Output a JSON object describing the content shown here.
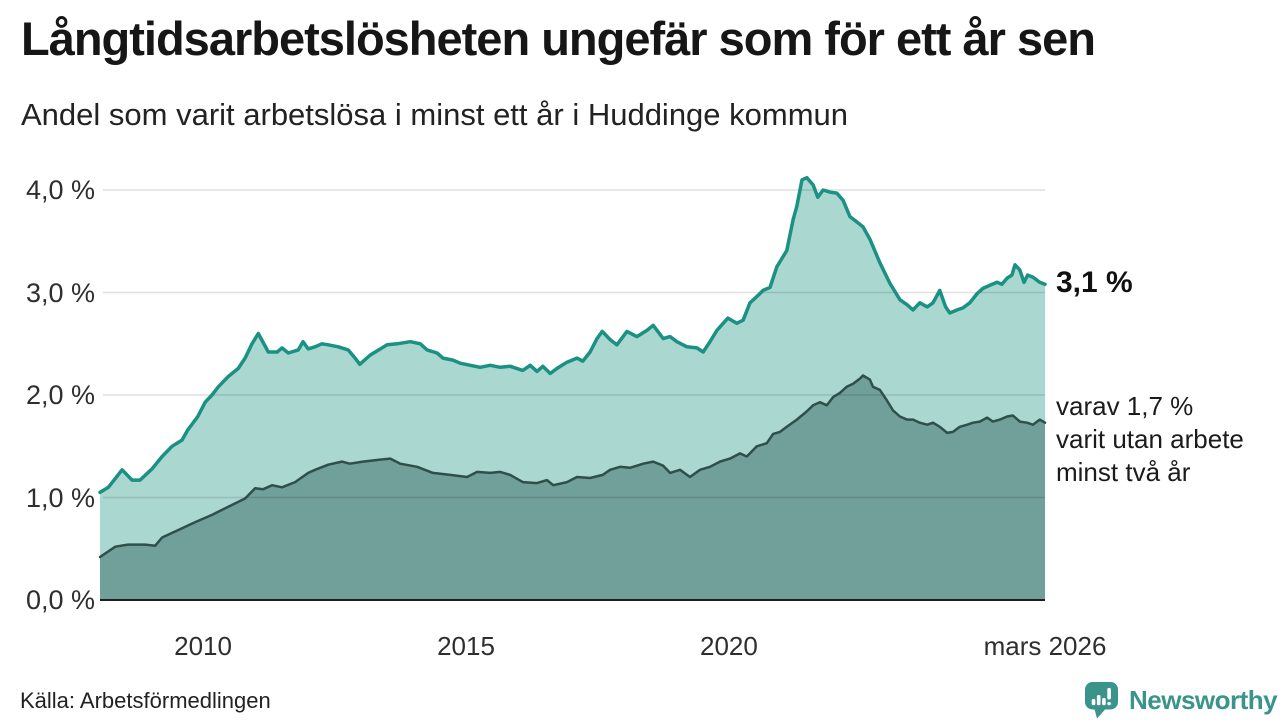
{
  "header": {
    "title": "Långtidsarbetslösheten ungefär som för ett år sen",
    "subtitle": "Andel som varit arbetslösa i minst ett år i Huddinge kommun"
  },
  "chart_data": {
    "type": "area",
    "title": "Långtidsarbetslösheten ungefär som för ett år sen",
    "subtitle": "Andel som varit arbetslösa i minst ett år i Huddinge kommun",
    "unit": "%",
    "grid": true,
    "legend_position": "end-of-line-labels",
    "x_domain": [
      2008.04,
      2026.01
    ],
    "ylim": [
      0,
      4.3
    ],
    "y_ticks": [
      {
        "label": "0,0 %",
        "value": 0
      },
      {
        "label": "1,0 %",
        "value": 1
      },
      {
        "label": "2,0 %",
        "value": 2
      },
      {
        "label": "3,0 %",
        "value": 3
      },
      {
        "label": "4,0 %",
        "value": 4
      }
    ],
    "x_ticks": [
      {
        "label": "2010",
        "value": 2010
      },
      {
        "label": "2015",
        "value": 2015
      },
      {
        "label": "2020",
        "value": 2020
      },
      {
        "label": "mars 2026",
        "value": 2026.01
      }
    ],
    "series": [
      {
        "name": "Andel arbetslösa minst ett år",
        "latest_value": 3.1,
        "end_label": "3,1 %",
        "color": "#1a9183",
        "fill": "#abd7d1",
        "stroke_width": 3.5,
        "points": [
          [
            2008.04,
            1.05
          ],
          [
            2008.2,
            1.1
          ],
          [
            2008.46,
            1.27
          ],
          [
            2008.65,
            1.17
          ],
          [
            2008.8,
            1.17
          ],
          [
            2009.03,
            1.28
          ],
          [
            2009.22,
            1.4
          ],
          [
            2009.41,
            1.5
          ],
          [
            2009.6,
            1.56
          ],
          [
            2009.71,
            1.66
          ],
          [
            2009.9,
            1.79
          ],
          [
            2010.04,
            1.93
          ],
          [
            2010.17,
            2.0
          ],
          [
            2010.29,
            2.08
          ],
          [
            2010.48,
            2.18
          ],
          [
            2010.67,
            2.26
          ],
          [
            2010.8,
            2.36
          ],
          [
            2010.93,
            2.5
          ],
          [
            2011.05,
            2.6
          ],
          [
            2011.24,
            2.42
          ],
          [
            2011.41,
            2.42
          ],
          [
            2011.5,
            2.46
          ],
          [
            2011.62,
            2.41
          ],
          [
            2011.81,
            2.44
          ],
          [
            2011.9,
            2.52
          ],
          [
            2012.0,
            2.45
          ],
          [
            2012.13,
            2.47
          ],
          [
            2012.26,
            2.5
          ],
          [
            2012.38,
            2.49
          ],
          [
            2012.57,
            2.47
          ],
          [
            2012.76,
            2.44
          ],
          [
            2012.89,
            2.36
          ],
          [
            2012.98,
            2.3
          ],
          [
            2013.18,
            2.39
          ],
          [
            2013.5,
            2.49
          ],
          [
            2013.69,
            2.5
          ],
          [
            2013.94,
            2.52
          ],
          [
            2014.13,
            2.5
          ],
          [
            2014.26,
            2.44
          ],
          [
            2014.45,
            2.41
          ],
          [
            2014.56,
            2.36
          ],
          [
            2014.75,
            2.34
          ],
          [
            2014.89,
            2.31
          ],
          [
            2015.08,
            2.29
          ],
          [
            2015.27,
            2.27
          ],
          [
            2015.46,
            2.29
          ],
          [
            2015.65,
            2.27
          ],
          [
            2015.84,
            2.28
          ],
          [
            2016.08,
            2.24
          ],
          [
            2016.22,
            2.29
          ],
          [
            2016.35,
            2.23
          ],
          [
            2016.46,
            2.28
          ],
          [
            2016.6,
            2.21
          ],
          [
            2016.73,
            2.26
          ],
          [
            2016.92,
            2.32
          ],
          [
            2017.11,
            2.36
          ],
          [
            2017.22,
            2.33
          ],
          [
            2017.36,
            2.42
          ],
          [
            2017.49,
            2.55
          ],
          [
            2017.59,
            2.62
          ],
          [
            2017.74,
            2.54
          ],
          [
            2017.87,
            2.49
          ],
          [
            2018.06,
            2.62
          ],
          [
            2018.25,
            2.57
          ],
          [
            2018.44,
            2.63
          ],
          [
            2018.56,
            2.68
          ],
          [
            2018.75,
            2.55
          ],
          [
            2018.88,
            2.57
          ],
          [
            2019.01,
            2.52
          ],
          [
            2019.2,
            2.47
          ],
          [
            2019.39,
            2.46
          ],
          [
            2019.51,
            2.42
          ],
          [
            2019.64,
            2.52
          ],
          [
            2019.77,
            2.63
          ],
          [
            2019.89,
            2.7
          ],
          [
            2019.98,
            2.75
          ],
          [
            2020.15,
            2.7
          ],
          [
            2020.27,
            2.73
          ],
          [
            2020.4,
            2.9
          ],
          [
            2020.53,
            2.96
          ],
          [
            2020.65,
            3.02
          ],
          [
            2020.78,
            3.05
          ],
          [
            2020.91,
            3.25
          ],
          [
            2021.1,
            3.41
          ],
          [
            2021.22,
            3.71
          ],
          [
            2021.29,
            3.84
          ],
          [
            2021.39,
            4.1
          ],
          [
            2021.48,
            4.12
          ],
          [
            2021.6,
            4.05
          ],
          [
            2021.69,
            3.93
          ],
          [
            2021.79,
            4.0
          ],
          [
            2021.92,
            3.98
          ],
          [
            2022.05,
            3.97
          ],
          [
            2022.17,
            3.9
          ],
          [
            2022.3,
            3.74
          ],
          [
            2022.43,
            3.69
          ],
          [
            2022.55,
            3.64
          ],
          [
            2022.68,
            3.52
          ],
          [
            2022.87,
            3.29
          ],
          [
            2023.06,
            3.09
          ],
          [
            2023.25,
            2.93
          ],
          [
            2023.39,
            2.88
          ],
          [
            2023.5,
            2.83
          ],
          [
            2023.63,
            2.9
          ],
          [
            2023.77,
            2.86
          ],
          [
            2023.88,
            2.9
          ],
          [
            2024.01,
            3.02
          ],
          [
            2024.12,
            2.86
          ],
          [
            2024.2,
            2.8
          ],
          [
            2024.34,
            2.83
          ],
          [
            2024.45,
            2.85
          ],
          [
            2024.58,
            2.9
          ],
          [
            2024.72,
            2.99
          ],
          [
            2024.83,
            3.04
          ],
          [
            2024.96,
            3.07
          ],
          [
            2025.1,
            3.1
          ],
          [
            2025.19,
            3.08
          ],
          [
            2025.29,
            3.14
          ],
          [
            2025.38,
            3.17
          ],
          [
            2025.44,
            3.27
          ],
          [
            2025.53,
            3.22
          ],
          [
            2025.61,
            3.1
          ],
          [
            2025.68,
            3.17
          ],
          [
            2025.78,
            3.15
          ],
          [
            2025.91,
            3.1
          ],
          [
            2026.01,
            3.08
          ]
        ]
      },
      {
        "name": "Varav arbetslösa minst två år",
        "latest_value": 1.7,
        "end_label": "varav 1,7 %\nvarit utan arbete\nminst två år",
        "color": "#2f4f4b",
        "fill": "#719f99",
        "stroke_width": 2.5,
        "points": [
          [
            2008.04,
            0.42
          ],
          [
            2008.33,
            0.52
          ],
          [
            2008.57,
            0.54
          ],
          [
            2008.9,
            0.54
          ],
          [
            2009.09,
            0.53
          ],
          [
            2009.22,
            0.61
          ],
          [
            2009.52,
            0.68
          ],
          [
            2009.85,
            0.76
          ],
          [
            2010.17,
            0.83
          ],
          [
            2010.48,
            0.91
          ],
          [
            2010.8,
            0.99
          ],
          [
            2010.99,
            1.09
          ],
          [
            2011.14,
            1.08
          ],
          [
            2011.31,
            1.12
          ],
          [
            2011.5,
            1.1
          ],
          [
            2011.75,
            1.15
          ],
          [
            2012.0,
            1.24
          ],
          [
            2012.13,
            1.27
          ],
          [
            2012.38,
            1.32
          ],
          [
            2012.64,
            1.35
          ],
          [
            2012.79,
            1.33
          ],
          [
            2013.04,
            1.35
          ],
          [
            2013.37,
            1.37
          ],
          [
            2013.56,
            1.38
          ],
          [
            2013.75,
            1.33
          ],
          [
            2014.07,
            1.3
          ],
          [
            2014.37,
            1.24
          ],
          [
            2014.7,
            1.22
          ],
          [
            2015.02,
            1.2
          ],
          [
            2015.21,
            1.25
          ],
          [
            2015.46,
            1.24
          ],
          [
            2015.65,
            1.25
          ],
          [
            2015.84,
            1.22
          ],
          [
            2016.08,
            1.15
          ],
          [
            2016.35,
            1.14
          ],
          [
            2016.54,
            1.17
          ],
          [
            2016.66,
            1.12
          ],
          [
            2016.92,
            1.15
          ],
          [
            2017.11,
            1.2
          ],
          [
            2017.36,
            1.19
          ],
          [
            2017.6,
            1.22
          ],
          [
            2017.74,
            1.27
          ],
          [
            2017.93,
            1.3
          ],
          [
            2018.12,
            1.29
          ],
          [
            2018.37,
            1.33
          ],
          [
            2018.56,
            1.35
          ],
          [
            2018.75,
            1.31
          ],
          [
            2018.88,
            1.24
          ],
          [
            2019.07,
            1.27
          ],
          [
            2019.26,
            1.2
          ],
          [
            2019.45,
            1.27
          ],
          [
            2019.64,
            1.3
          ],
          [
            2019.83,
            1.35
          ],
          [
            2020.02,
            1.38
          ],
          [
            2020.21,
            1.43
          ],
          [
            2020.34,
            1.4
          ],
          [
            2020.53,
            1.5
          ],
          [
            2020.72,
            1.53
          ],
          [
            2020.84,
            1.62
          ],
          [
            2020.97,
            1.64
          ],
          [
            2021.1,
            1.69
          ],
          [
            2021.29,
            1.76
          ],
          [
            2021.48,
            1.84
          ],
          [
            2021.6,
            1.9
          ],
          [
            2021.73,
            1.93
          ],
          [
            2021.86,
            1.9
          ],
          [
            2021.98,
            1.98
          ],
          [
            2022.11,
            2.02
          ],
          [
            2022.24,
            2.08
          ],
          [
            2022.36,
            2.11
          ],
          [
            2022.49,
            2.16
          ],
          [
            2022.55,
            2.19
          ],
          [
            2022.68,
            2.15
          ],
          [
            2022.74,
            2.08
          ],
          [
            2022.87,
            2.05
          ],
          [
            2023.0,
            1.95
          ],
          [
            2023.12,
            1.85
          ],
          [
            2023.25,
            1.79
          ],
          [
            2023.39,
            1.76
          ],
          [
            2023.5,
            1.76
          ],
          [
            2023.63,
            1.73
          ],
          [
            2023.77,
            1.71
          ],
          [
            2023.88,
            1.73
          ],
          [
            2024.01,
            1.69
          ],
          [
            2024.15,
            1.63
          ],
          [
            2024.26,
            1.64
          ],
          [
            2024.39,
            1.69
          ],
          [
            2024.53,
            1.71
          ],
          [
            2024.64,
            1.73
          ],
          [
            2024.77,
            1.74
          ],
          [
            2024.91,
            1.78
          ],
          [
            2025.02,
            1.74
          ],
          [
            2025.15,
            1.76
          ],
          [
            2025.29,
            1.79
          ],
          [
            2025.4,
            1.8
          ],
          [
            2025.53,
            1.74
          ],
          [
            2025.67,
            1.73
          ],
          [
            2025.78,
            1.71
          ],
          [
            2025.91,
            1.76
          ],
          [
            2026.01,
            1.73
          ]
        ]
      }
    ]
  },
  "annotations": {
    "latest_value": "3,1 %",
    "secondary": "varav 1,7 %\nvarit utan arbete\nminst två år"
  },
  "footer": {
    "source": "Källa: Arbetsförmedlingen",
    "brand": "Newsworthy"
  },
  "colors": {
    "line_primary": "#1a9183",
    "area_primary": "#abd7d1",
    "line_secondary": "#2f4f4b",
    "area_secondary": "#719f99",
    "grid": "rgba(0,0,0,0.12)",
    "axis": "#1f1f1f",
    "brand": "#3a948c"
  }
}
